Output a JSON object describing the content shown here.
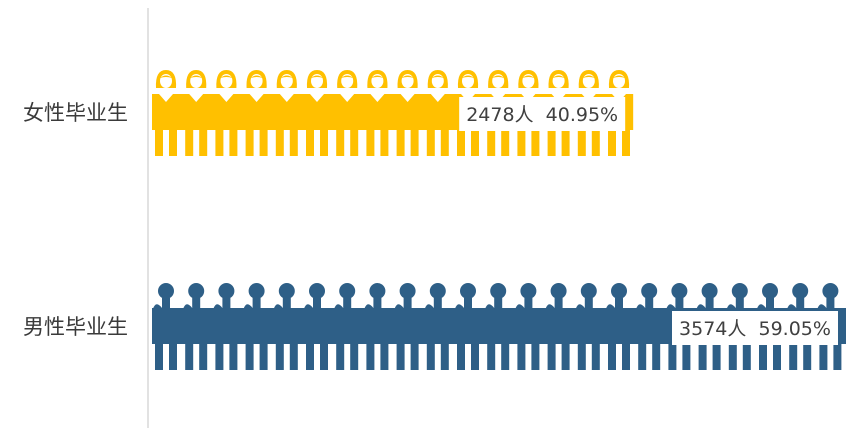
{
  "chart_data": {
    "type": "bar",
    "orientation": "horizontal",
    "pictogram": true,
    "categories": [
      "女性毕业生",
      "男性毕业生"
    ],
    "values": [
      2478,
      3574
    ],
    "percents": [
      "40.95%",
      "59.05%"
    ],
    "data_labels": [
      "2478人  40.95%",
      "3574人  59.05%"
    ],
    "colors": [
      "#FFC000",
      "#2E5F87"
    ],
    "icons": [
      "female-person-icon",
      "male-person-icon"
    ],
    "xlim": [
      0,
      3574
    ],
    "title": "",
    "xlabel": "",
    "ylabel": "",
    "grid": false,
    "legend": "none"
  }
}
